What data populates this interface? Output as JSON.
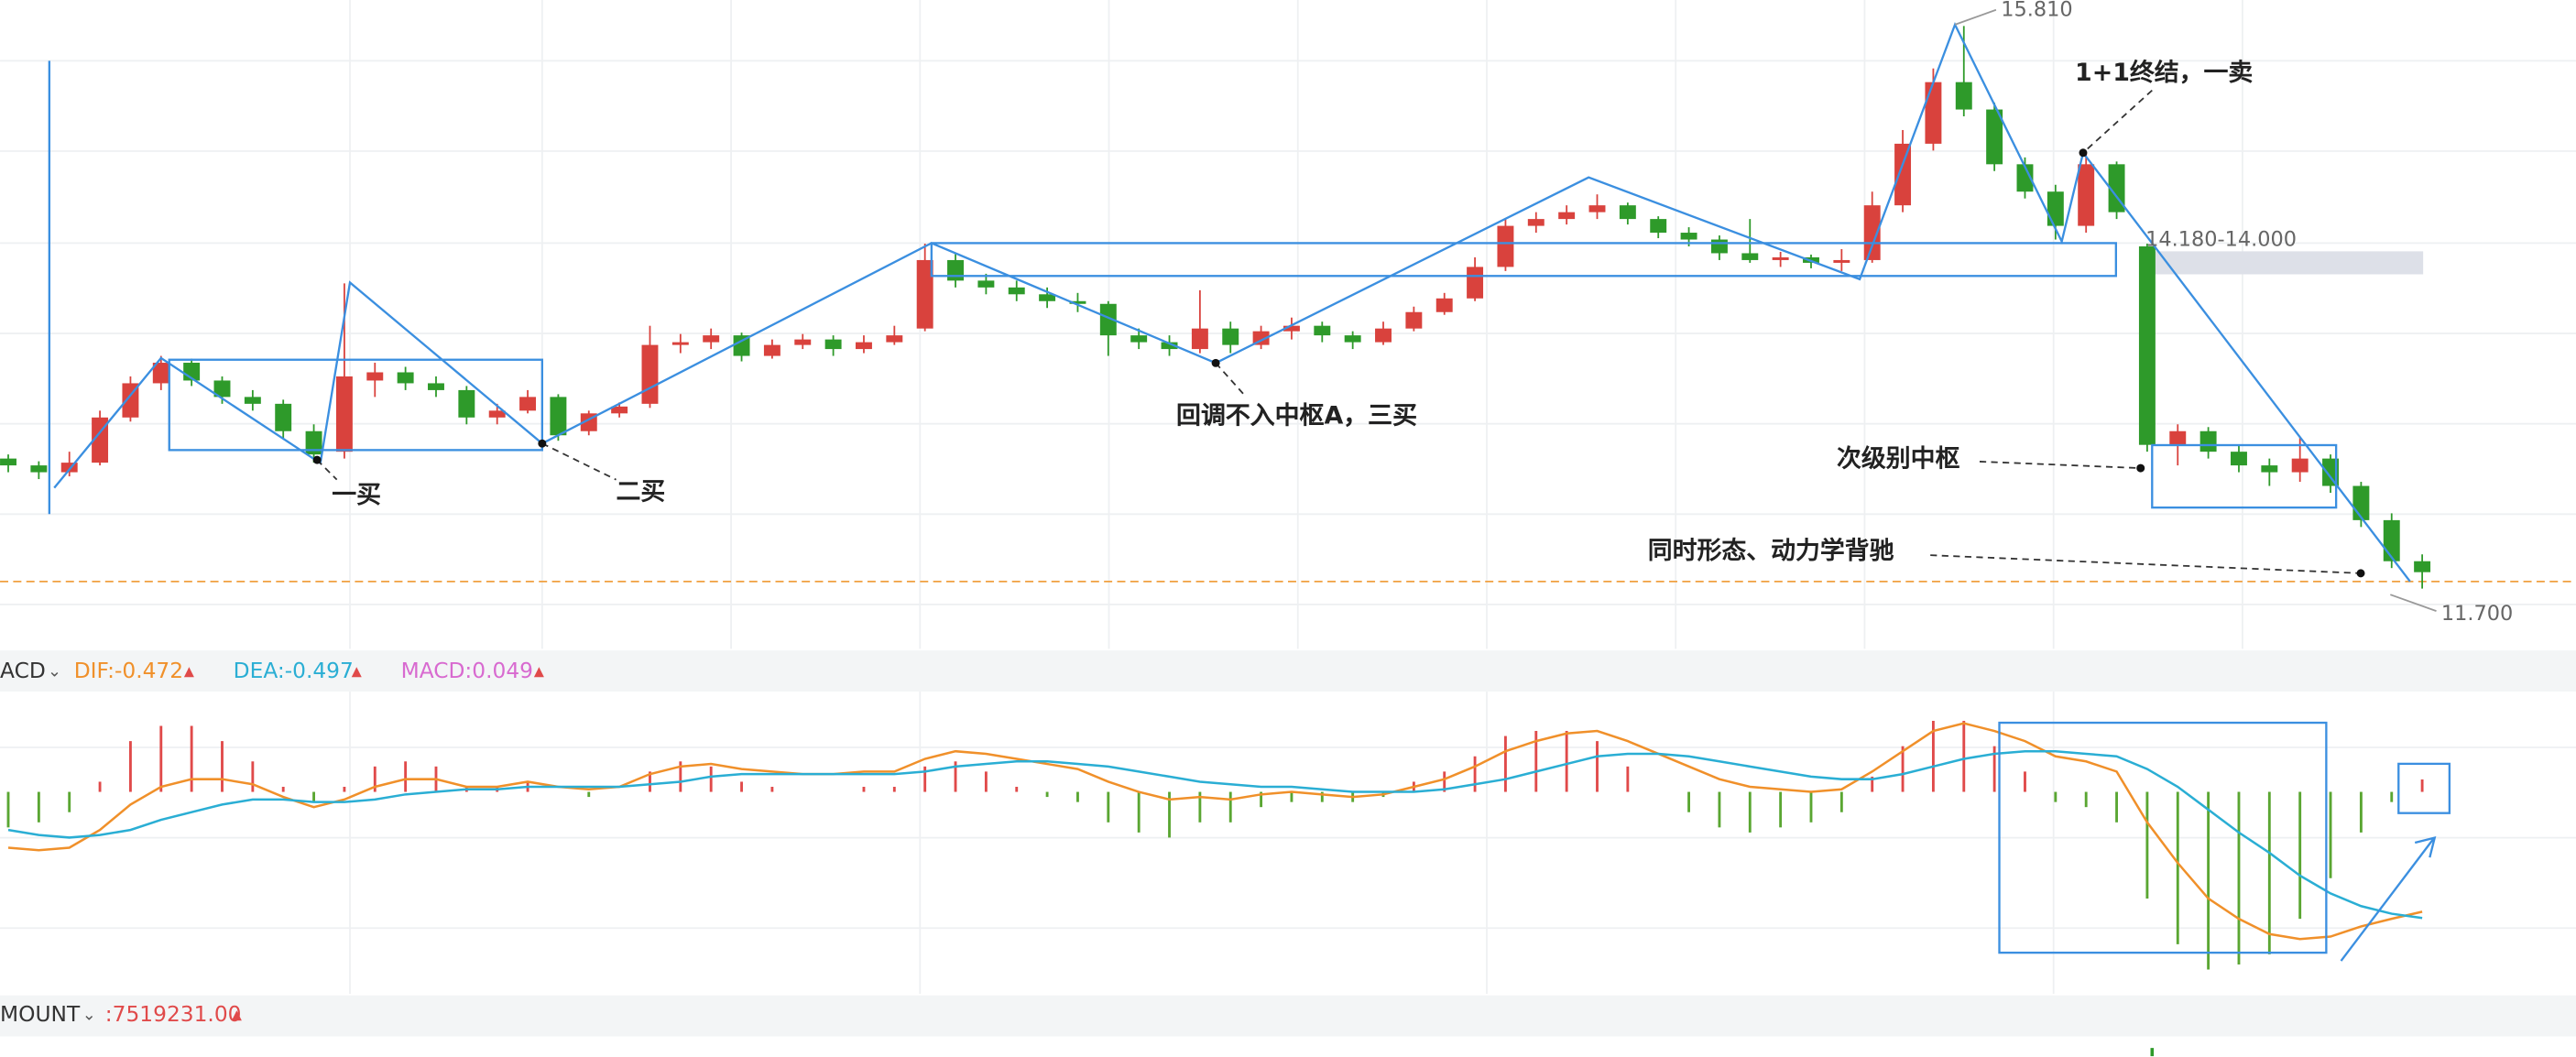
{
  "chart_data": [
    {
      "type": "candlestick",
      "up_color": "#d9423d",
      "down_color": "#2e9a2a",
      "ylim": [
        11.26,
        16.0
      ],
      "open": [
        12.65,
        12.6,
        12.55,
        12.62,
        12.95,
        13.2,
        13.35,
        13.22,
        13.1,
        13.05,
        12.85,
        12.7,
        13.22,
        13.28,
        13.2,
        13.15,
        12.95,
        13.0,
        13.1,
        12.85,
        12.98,
        13.05,
        13.48,
        13.5,
        13.55,
        13.4,
        13.48,
        13.52,
        13.45,
        13.5,
        13.6,
        14.1,
        13.95,
        13.9,
        13.85,
        13.8,
        13.78,
        13.55,
        13.5,
        13.45,
        13.6,
        13.48,
        13.58,
        13.62,
        13.55,
        13.5,
        13.6,
        13.72,
        13.82,
        14.05,
        14.35,
        14.4,
        14.45,
        14.5,
        14.4,
        14.3,
        14.25,
        14.15,
        14.1,
        14.12,
        14.08,
        14.1,
        14.5,
        14.95,
        15.4,
        15.2,
        14.8,
        14.6,
        14.35,
        14.8,
        14.2,
        12.75,
        12.85,
        12.7,
        12.6,
        12.55,
        12.65,
        12.45,
        12.2,
        11.9
      ],
      "high": [
        12.68,
        12.63,
        12.7,
        13.0,
        13.25,
        13.4,
        13.38,
        13.25,
        13.15,
        13.08,
        12.9,
        13.93,
        13.35,
        13.32,
        13.25,
        13.18,
        13.05,
        13.15,
        13.12,
        13.0,
        13.06,
        13.62,
        13.56,
        13.6,
        13.57,
        13.52,
        13.56,
        13.55,
        13.55,
        13.62,
        14.22,
        14.15,
        14.0,
        13.95,
        13.9,
        13.86,
        13.8,
        13.6,
        13.55,
        13.88,
        13.65,
        13.62,
        13.68,
        13.65,
        13.58,
        13.65,
        13.76,
        13.86,
        14.12,
        14.4,
        14.45,
        14.5,
        14.58,
        14.52,
        14.42,
        14.34,
        14.28,
        14.4,
        14.16,
        14.14,
        14.18,
        14.6,
        15.05,
        15.5,
        15.81,
        15.25,
        14.85,
        14.65,
        14.88,
        14.82,
        14.22,
        12.9,
        12.88,
        12.75,
        12.65,
        12.8,
        12.68,
        12.48,
        12.25,
        11.95
      ],
      "low": [
        12.55,
        12.5,
        12.52,
        12.6,
        12.92,
        13.15,
        13.18,
        13.05,
        13.0,
        12.8,
        12.62,
        12.65,
        13.1,
        13.15,
        13.1,
        12.9,
        12.9,
        12.98,
        12.78,
        12.82,
        12.95,
        13.02,
        13.42,
        13.45,
        13.36,
        13.38,
        13.45,
        13.4,
        13.42,
        13.48,
        13.58,
        13.9,
        13.85,
        13.8,
        13.75,
        13.72,
        13.4,
        13.45,
        13.4,
        13.42,
        13.42,
        13.45,
        13.52,
        13.5,
        13.45,
        13.48,
        13.58,
        13.7,
        13.8,
        14.02,
        14.3,
        14.36,
        14.4,
        14.36,
        14.26,
        14.2,
        14.1,
        14.08,
        14.05,
        14.04,
        14.02,
        14.08,
        14.45,
        14.9,
        15.15,
        14.75,
        14.55,
        14.25,
        14.3,
        14.4,
        12.7,
        12.6,
        12.65,
        12.55,
        12.45,
        12.48,
        12.4,
        12.15,
        11.85,
        11.7
      ],
      "close": [
        12.6,
        12.55,
        12.62,
        12.95,
        13.2,
        13.35,
        13.22,
        13.1,
        13.05,
        12.85,
        12.68,
        13.25,
        13.28,
        13.2,
        13.15,
        12.95,
        13.0,
        13.1,
        12.82,
        12.98,
        13.03,
        13.48,
        13.5,
        13.55,
        13.4,
        13.48,
        13.52,
        13.45,
        13.5,
        13.55,
        14.1,
        13.95,
        13.9,
        13.85,
        13.8,
        13.78,
        13.55,
        13.5,
        13.45,
        13.6,
        13.48,
        13.58,
        13.62,
        13.55,
        13.5,
        13.6,
        13.72,
        13.82,
        14.05,
        14.35,
        14.4,
        14.45,
        14.5,
        14.4,
        14.3,
        14.25,
        14.15,
        14.1,
        14.12,
        14.08,
        14.1,
        14.5,
        14.95,
        15.4,
        15.2,
        14.8,
        14.6,
        14.35,
        14.8,
        14.45,
        12.75,
        12.85,
        12.7,
        12.6,
        12.55,
        12.65,
        12.45,
        12.2,
        11.9,
        11.82
      ]
    },
    {
      "type": "macd",
      "indicator": "ACD",
      "ylim": [
        -0.75,
        0.35
      ],
      "series": [
        {
          "name": "DIF:-0.472",
          "color": "#f0902a",
          "values": [
            -0.22,
            -0.23,
            -0.22,
            -0.15,
            -0.05,
            0.02,
            0.05,
            0.05,
            0.03,
            -0.02,
            -0.06,
            -0.03,
            0.02,
            0.05,
            0.05,
            0.02,
            0.02,
            0.04,
            0.02,
            0.01,
            0.02,
            0.07,
            0.1,
            0.11,
            0.09,
            0.08,
            0.07,
            0.07,
            0.08,
            0.08,
            0.13,
            0.16,
            0.15,
            0.13,
            0.11,
            0.09,
            0.04,
            0.0,
            -0.03,
            -0.02,
            -0.03,
            -0.01,
            0.0,
            -0.01,
            -0.02,
            -0.01,
            0.02,
            0.05,
            0.1,
            0.16,
            0.2,
            0.23,
            0.24,
            0.2,
            0.15,
            0.1,
            0.05,
            0.02,
            0.01,
            0.0,
            0.01,
            0.08,
            0.16,
            0.24,
            0.27,
            0.24,
            0.2,
            0.14,
            0.12,
            0.08,
            -0.12,
            -0.28,
            -0.42,
            -0.5,
            -0.56,
            -0.58,
            -0.57,
            -0.53,
            -0.5,
            -0.472
          ]
        },
        {
          "name": "DEA:-0.497",
          "color": "#2aaed4",
          "values": [
            -0.15,
            -0.17,
            -0.18,
            -0.17,
            -0.15,
            -0.11,
            -0.08,
            -0.05,
            -0.03,
            -0.03,
            -0.04,
            -0.04,
            -0.03,
            -0.01,
            0.0,
            0.01,
            0.01,
            0.02,
            0.02,
            0.02,
            0.02,
            0.03,
            0.04,
            0.06,
            0.07,
            0.07,
            0.07,
            0.07,
            0.07,
            0.07,
            0.08,
            0.1,
            0.11,
            0.12,
            0.12,
            0.11,
            0.1,
            0.08,
            0.06,
            0.04,
            0.03,
            0.02,
            0.02,
            0.01,
            0.0,
            0.0,
            0.0,
            0.01,
            0.03,
            0.05,
            0.08,
            0.11,
            0.14,
            0.15,
            0.15,
            0.14,
            0.12,
            0.1,
            0.08,
            0.06,
            0.05,
            0.05,
            0.07,
            0.1,
            0.13,
            0.15,
            0.16,
            0.16,
            0.15,
            0.14,
            0.09,
            0.02,
            -0.07,
            -0.16,
            -0.24,
            -0.33,
            -0.4,
            -0.45,
            -0.48,
            -0.497
          ]
        },
        {
          "name": "MACD:0.049",
          "color": "#d86ad0",
          "up_color": "#e04a4a",
          "down_color": "#5aa632",
          "values": [
            -0.14,
            -0.12,
            -0.08,
            0.04,
            0.2,
            0.26,
            0.26,
            0.2,
            0.12,
            0.02,
            -0.04,
            0.02,
            0.1,
            0.12,
            0.1,
            0.02,
            0.02,
            0.04,
            0.0,
            -0.02,
            0.0,
            0.08,
            0.12,
            0.1,
            0.04,
            0.02,
            0.0,
            0.0,
            0.02,
            0.02,
            0.1,
            0.12,
            0.08,
            0.02,
            -0.02,
            -0.04,
            -0.12,
            -0.16,
            -0.18,
            -0.12,
            -0.12,
            -0.06,
            -0.04,
            -0.04,
            -0.04,
            -0.02,
            0.04,
            0.08,
            0.14,
            0.22,
            0.24,
            0.24,
            0.2,
            0.1,
            0.0,
            -0.08,
            -0.14,
            -0.16,
            -0.14,
            -0.12,
            -0.08,
            0.06,
            0.18,
            0.28,
            0.28,
            0.18,
            0.08,
            -0.04,
            -0.06,
            -0.12,
            -0.42,
            -0.6,
            -0.7,
            -0.68,
            -0.64,
            -0.5,
            -0.34,
            -0.16,
            -0.04,
            0.049
          ]
        }
      ]
    }
  ],
  "annotations": [
    "15.810",
    "1+1终结，一卖",
    "14.180-14.000",
    "回调不入中枢A，三买",
    "一买",
    "二买",
    "次级别中枢",
    "同时形态、动力学背驰",
    "11.700"
  ],
  "amount_panel": {
    "indicator": "MOUNT",
    "value_text": ":7519231.00"
  }
}
